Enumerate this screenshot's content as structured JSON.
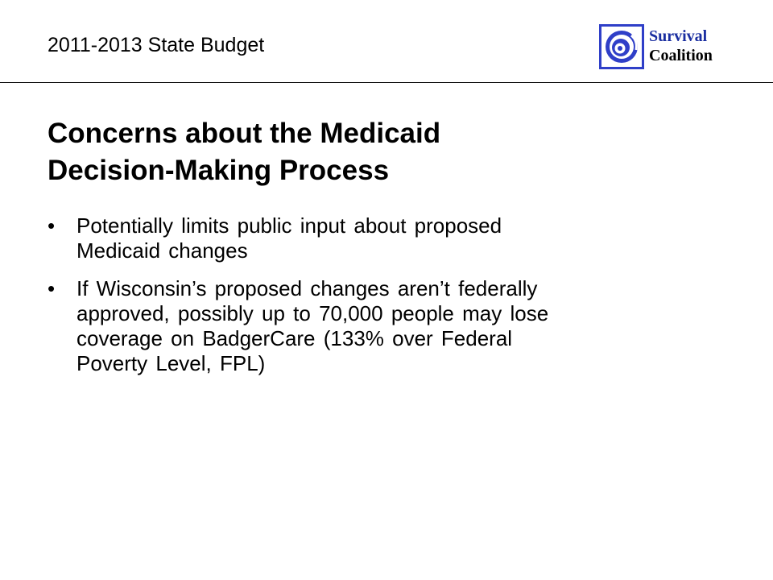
{
  "header": {
    "title": "2011-2013 State Budget"
  },
  "logo": {
    "icon": "spiral-icon",
    "line1": "Survival",
    "line2": "Coalition",
    "colors": {
      "brand_blue": "#1a2ea0",
      "frame": "#2f3fc8"
    }
  },
  "slide": {
    "title_lines": [
      "Concerns about the Medicaid",
      "Decision-Making Process"
    ],
    "bullet_marker": "•",
    "bullets": [
      {
        "lines": [
          "Potentially limits public input about proposed",
          "Medicaid changes"
        ]
      },
      {
        "lines": [
          "If Wisconsin’s proposed changes aren’t federally",
          "approved, possibly up to 70,000 people may lose",
          "coverage on BadgerCare (133% over Federal",
          "Poverty Level, FPL)"
        ]
      }
    ]
  }
}
